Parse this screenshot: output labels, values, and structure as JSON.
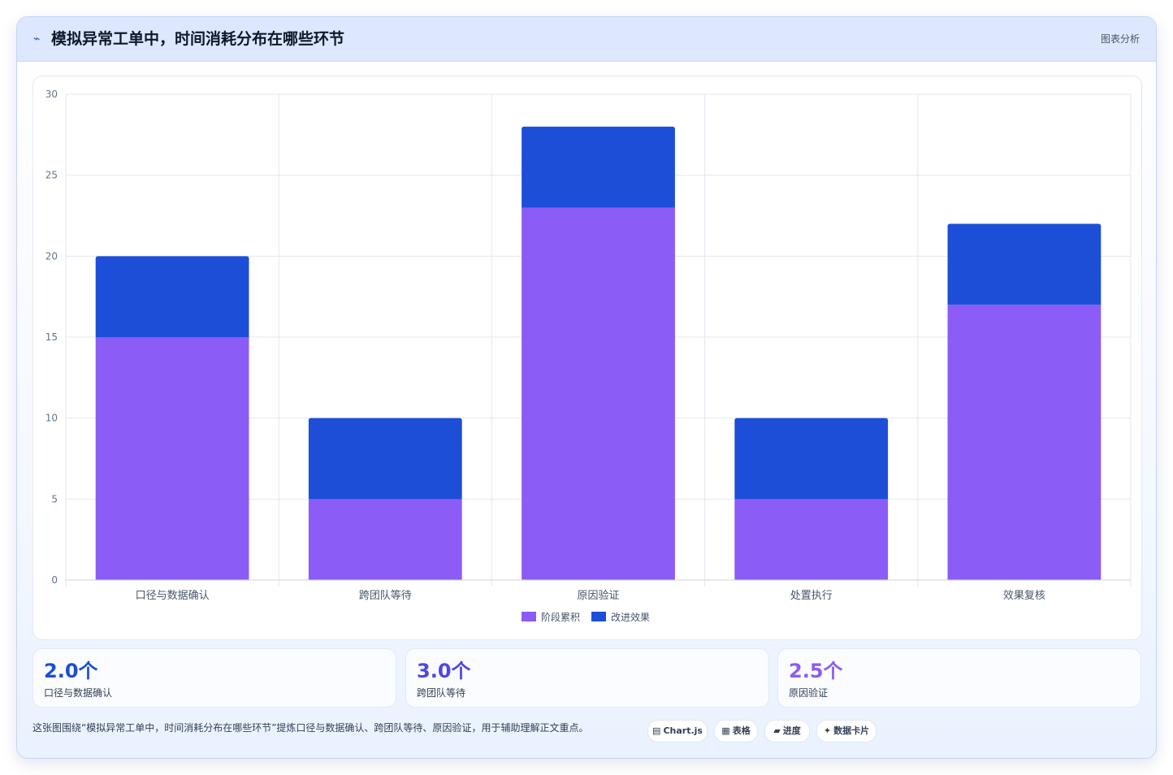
{
  "header": {
    "icon": "chart-line-icon",
    "title": "模拟异常工单中，时间消耗分布在哪些环节",
    "tag": "图表分析"
  },
  "colors": {
    "series_a": "#8b5cf6",
    "series_b": "#1d4ed8",
    "stat_blue": "#1d4ed8",
    "stat_indigo": "#4f46e5",
    "stat_purple": "#8b5cf6"
  },
  "chart_data": {
    "type": "bar",
    "stacked": true,
    "categories": [
      "口径与数据确认",
      "跨团队等待",
      "原因验证",
      "处置执行",
      "效果复核"
    ],
    "series": [
      {
        "name": "阶段累积",
        "values": [
          15,
          5,
          23,
          5,
          17
        ],
        "color": "#8b5cf6"
      },
      {
        "name": "改进效果",
        "values": [
          5,
          5,
          5,
          5,
          5
        ],
        "color": "#1d4ed8"
      }
    ],
    "ylim": [
      0,
      30
    ],
    "yticks": [
      0,
      5,
      10,
      15,
      20,
      25,
      30
    ],
    "grid": true,
    "legend": "bottom"
  },
  "stats": [
    {
      "value": "2.0个",
      "label": "口径与数据确认"
    },
    {
      "value": "3.0个",
      "label": "跨团队等待"
    },
    {
      "value": "2.5个",
      "label": "原因验证"
    }
  ],
  "footer": {
    "text": "这张图围绕“模拟异常工单中，时间消耗分布在哪些环节”提炼口径与数据确认、跨团队等待、原因验证，用于辅助理解正文重点。"
  },
  "chips": [
    {
      "icon": "code-icon",
      "label": "Chart.js"
    },
    {
      "icon": "table-icon",
      "label": "表格"
    },
    {
      "icon": "progress-icon",
      "label": "进度"
    },
    {
      "icon": "sparkle-icon",
      "label": "数据卡片"
    }
  ]
}
